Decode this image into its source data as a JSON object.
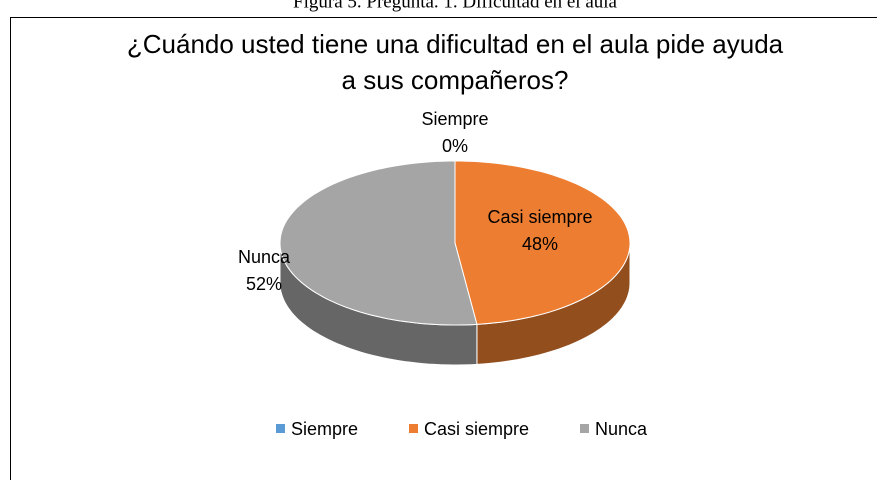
{
  "caption": "Figura 5. Pregunta. 1. Dificultad en el aula",
  "chart_data": {
    "type": "pie",
    "title": "¿Cuándo usted tiene una dificultad en el aula pide ayuda a sus compañeros?",
    "categories": [
      "Siempre",
      "Casi siempre",
      "Nunca"
    ],
    "values": [
      0,
      48,
      52
    ],
    "value_labels": [
      "0%",
      "48%",
      "52%"
    ],
    "colors": [
      "#5b9bd5",
      "#ed7d31",
      "#a5a5a5"
    ],
    "legend": "bottom"
  }
}
